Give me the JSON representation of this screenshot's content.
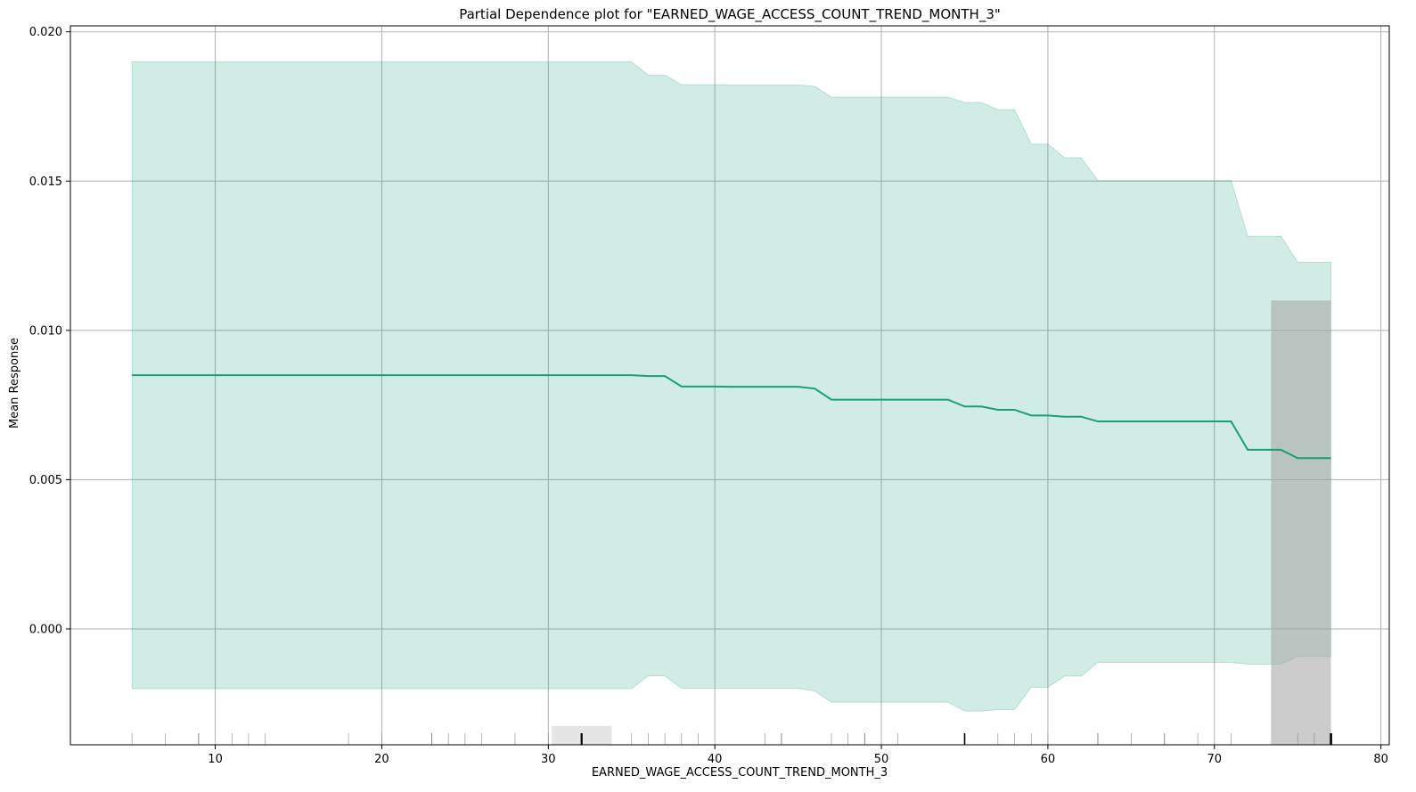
{
  "chart_data": {
    "type": "line",
    "title": "Partial Dependence plot for \"EARNED_WAGE_ACCESS_COUNT_TREND_MONTH_3\"",
    "xlabel": "EARNED_WAGE_ACCESS_COUNT_TREND_MONTH_3",
    "ylabel": "Mean Response",
    "xlim": [
      1.3,
      80.5
    ],
    "ylim": [
      -0.00388,
      0.0202
    ],
    "xticks": [
      10,
      20,
      30,
      40,
      50,
      60,
      70,
      80
    ],
    "xtick_labels": [
      "10",
      "20",
      "30",
      "40",
      "50",
      "60",
      "70",
      "80"
    ],
    "yticks": [
      0.0,
      0.005,
      0.01,
      0.015,
      0.02
    ],
    "ytick_labels": [
      "0.000",
      "0.005",
      "0.010",
      "0.015",
      "0.020"
    ],
    "grid": true,
    "line_color": "#1b9e77",
    "band_color": "#1b9e77",
    "series": [
      {
        "x": [
          5,
          35,
          36,
          37,
          38,
          39,
          40,
          41,
          45,
          46,
          47,
          53,
          54,
          55,
          56,
          57,
          58,
          59,
          60,
          61,
          62,
          63,
          71,
          72,
          73,
          74,
          75,
          76,
          77
        ],
        "y": [
          0.0085,
          0.0085,
          0.00847,
          0.00847,
          0.00812,
          0.00812,
          0.00812,
          0.00811,
          0.00811,
          0.00805,
          0.00768,
          0.00768,
          0.00768,
          0.00745,
          0.00745,
          0.00734,
          0.00734,
          0.00715,
          0.00715,
          0.00711,
          0.00711,
          0.00695,
          0.00695,
          0.006,
          0.006,
          0.006,
          0.00572,
          0.00572,
          0.00572
        ],
        "upper": [
          0.019,
          0.019,
          0.01855,
          0.01855,
          0.01823,
          0.01823,
          0.01823,
          0.01822,
          0.01822,
          0.01817,
          0.01781,
          0.01781,
          0.01781,
          0.01763,
          0.01763,
          0.01739,
          0.01739,
          0.01624,
          0.01624,
          0.01578,
          0.01578,
          0.01502,
          0.01502,
          0.01315,
          0.01315,
          0.01315,
          0.01228,
          0.01228,
          0.01228
        ],
        "lower": [
          -0.002,
          -0.002,
          -0.00157,
          -0.00157,
          -0.00199,
          -0.00199,
          -0.00199,
          -0.00199,
          -0.00199,
          -0.00208,
          -0.00245,
          -0.00245,
          -0.00245,
          -0.00275,
          -0.00275,
          -0.0027,
          -0.0027,
          -0.00195,
          -0.00195,
          -0.00158,
          -0.00158,
          -0.00112,
          -0.00112,
          -0.00118,
          -0.00118,
          -0.00118,
          -0.00092,
          -0.00092,
          -0.00092
        ]
      }
    ],
    "histogram": [
      {
        "x0": 30.2,
        "x1": 33.8,
        "top": -0.00325,
        "color": "#d3d3d3"
      },
      {
        "x0": 73.4,
        "x1": 77.0,
        "top": 0.011,
        "color": "#a9a9a9"
      }
    ],
    "rug": [
      {
        "x": 5,
        "w": 0.6
      },
      {
        "x": 7,
        "w": 0.6
      },
      {
        "x": 9,
        "w": 1.0
      },
      {
        "x": 11,
        "w": 0.6
      },
      {
        "x": 12,
        "w": 0.6
      },
      {
        "x": 13,
        "w": 0.6
      },
      {
        "x": 18,
        "w": 0.6
      },
      {
        "x": 20,
        "w": 0.6
      },
      {
        "x": 23,
        "w": 1.0
      },
      {
        "x": 24,
        "w": 0.6
      },
      {
        "x": 25,
        "w": 0.6
      },
      {
        "x": 26,
        "w": 0.6
      },
      {
        "x": 28,
        "w": 0.6
      },
      {
        "x": 30,
        "w": 0.6
      },
      {
        "x": 32,
        "w": 2.2
      },
      {
        "x": 35,
        "w": 0.6
      },
      {
        "x": 36,
        "w": 0.6
      },
      {
        "x": 37,
        "w": 0.6
      },
      {
        "x": 38,
        "w": 0.6
      },
      {
        "x": 39,
        "w": 0.6
      },
      {
        "x": 43,
        "w": 0.6
      },
      {
        "x": 44,
        "w": 1.0
      },
      {
        "x": 47,
        "w": 0.6
      },
      {
        "x": 48,
        "w": 0.6
      },
      {
        "x": 49,
        "w": 1.0
      },
      {
        "x": 51,
        "w": 0.6
      },
      {
        "x": 55,
        "w": 1.6
      },
      {
        "x": 57,
        "w": 0.6
      },
      {
        "x": 58,
        "w": 0.6
      },
      {
        "x": 59,
        "w": 0.6
      },
      {
        "x": 60,
        "w": 0.6
      },
      {
        "x": 63,
        "w": 1.0
      },
      {
        "x": 65,
        "w": 0.6
      },
      {
        "x": 67,
        "w": 1.0
      },
      {
        "x": 69,
        "w": 0.6
      },
      {
        "x": 71,
        "w": 0.6
      },
      {
        "x": 75,
        "w": 0.6
      },
      {
        "x": 76,
        "w": 0.6
      },
      {
        "x": 77,
        "w": 2.6
      }
    ]
  }
}
